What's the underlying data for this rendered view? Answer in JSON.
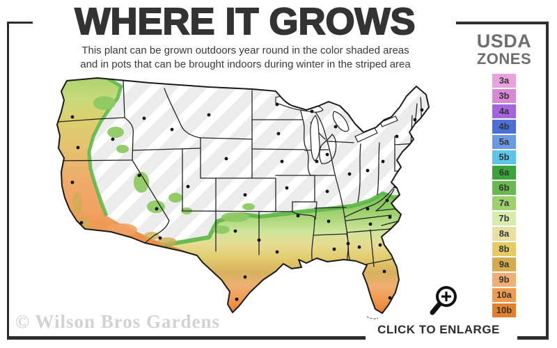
{
  "header": {
    "title": "WHERE IT GROWS",
    "subtitle_line1": "This plant can be grown outdoors year round in the color shaded areas",
    "subtitle_line2": "and in pots that can be brought indoors during winter in the striped area"
  },
  "legend": {
    "title_line1": "USDA",
    "title_line2": "ZONES",
    "zones": [
      {
        "label": "3a",
        "color": "#e9a3dc"
      },
      {
        "label": "3b",
        "color": "#d989d3"
      },
      {
        "label": "4a",
        "color": "#a566dd"
      },
      {
        "label": "4b",
        "color": "#4d70d6"
      },
      {
        "label": "5a",
        "color": "#6c99e3"
      },
      {
        "label": "5b",
        "color": "#5cc5e8"
      },
      {
        "label": "6a",
        "color": "#3ba33b"
      },
      {
        "label": "6b",
        "color": "#6ab851"
      },
      {
        "label": "7a",
        "color": "#9ed06e"
      },
      {
        "label": "7b",
        "color": "#d8ecb0"
      },
      {
        "label": "8a",
        "color": "#e8e0a3"
      },
      {
        "label": "8b",
        "color": "#e5cb66"
      },
      {
        "label": "9a",
        "color": "#d3ab4e"
      },
      {
        "label": "9b",
        "color": "#f0af74"
      },
      {
        "label": "10a",
        "color": "#ee9b50"
      },
      {
        "label": "10b",
        "color": "#e2812f"
      }
    ]
  },
  "map": {
    "striped_area_color": "#ececec",
    "stripe_color": "#ffffff",
    "outline_color": "#1a1a1a",
    "state_line_color": "#222222",
    "marker_color": "#111111",
    "west_gradient": [
      {
        "o": 0,
        "c": "#a9d26f"
      },
      {
        "o": 0.13,
        "c": "#c8da7b"
      },
      {
        "o": 0.24,
        "c": "#dcd06e"
      },
      {
        "o": 0.4,
        "c": "#e4c271"
      },
      {
        "o": 0.58,
        "c": "#eeab6b"
      },
      {
        "o": 0.75,
        "c": "#f0a261"
      },
      {
        "o": 1,
        "c": "#e9863e"
      }
    ],
    "south_gradient": [
      {
        "o": 0,
        "c": "#72be52"
      },
      {
        "o": 0.22,
        "c": "#85c75e"
      },
      {
        "o": 0.33,
        "c": "#a9d578"
      },
      {
        "o": 0.43,
        "c": "#cfe69c"
      },
      {
        "o": 0.52,
        "c": "#e7dc92"
      },
      {
        "o": 0.62,
        "c": "#e2c96c"
      },
      {
        "o": 0.71,
        "c": "#d8b160"
      },
      {
        "o": 0.8,
        "c": "#edb071"
      },
      {
        "o": 0.9,
        "c": "#f09a50"
      },
      {
        "o": 1,
        "c": "#e47c31"
      }
    ]
  },
  "footer": {
    "watermark": "© Wilson Bros Gardens",
    "enlarge_label": "CLICK TO ENLARGE"
  }
}
